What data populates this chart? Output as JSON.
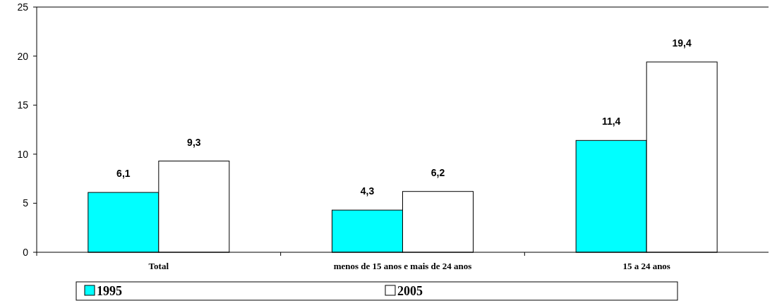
{
  "chart_data": {
    "type": "bar",
    "categories": [
      "Total",
      "menos de 15 anos e mais de 24 anos",
      "15 a 24 anos"
    ],
    "series": [
      {
        "name": "1995",
        "color": "#00ffff",
        "values": [
          6.1,
          4.3,
          11.4
        ],
        "value_labels": [
          "6,1",
          "4,3",
          "11,4"
        ]
      },
      {
        "name": "2005",
        "color": "#ffffff",
        "values": [
          9.3,
          6.2,
          19.4
        ],
        "value_labels": [
          "9,3",
          "6,2",
          "19,4"
        ]
      }
    ],
    "ylim": [
      0,
      25
    ],
    "yticks": [
      0,
      5,
      10,
      15,
      20,
      25
    ],
    "grid": false,
    "legend": "bottom"
  }
}
